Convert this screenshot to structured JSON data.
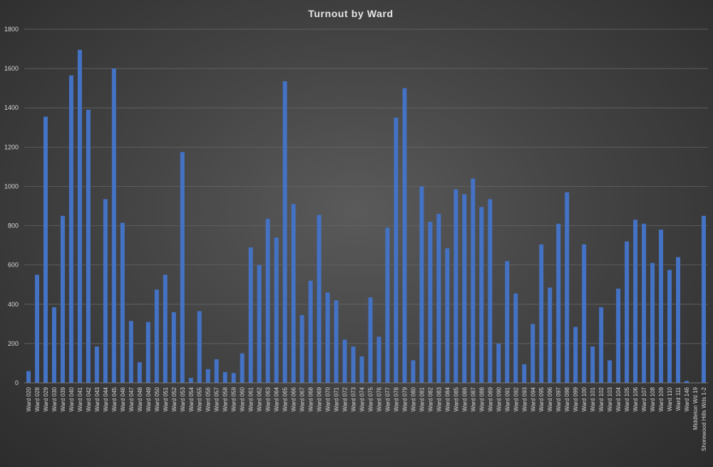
{
  "chart_data": {
    "type": "bar",
    "title": "Turnout by Ward",
    "xlabel": "",
    "ylabel": "",
    "ylim": [
      0,
      1800
    ],
    "yticks": [
      0,
      200,
      400,
      600,
      800,
      1000,
      1200,
      1400,
      1600,
      1800
    ],
    "grid": true,
    "legend": "none",
    "bar_color": "#4472C4",
    "categories": [
      "Ward 020",
      "Ward 028",
      "Ward 029",
      "Ward 030",
      "Ward 039",
      "Ward 040",
      "Ward 041",
      "Ward 042",
      "Ward 043",
      "Ward 044",
      "Ward 045",
      "Ward 046",
      "Ward 047",
      "Ward 048",
      "Ward 049",
      "Ward 050",
      "Ward 051",
      "Ward 052",
      "Ward 053",
      "Ward 054",
      "Ward 055",
      "Ward 056",
      "Ward 057",
      "Ward 058",
      "Ward 059",
      "Ward 060",
      "Ward 061",
      "Ward 062",
      "Ward 063",
      "Ward 064",
      "Ward 065",
      "Ward 066",
      "Ward 067",
      "Ward 068",
      "Ward 069",
      "Ward 070",
      "Ward 071",
      "Ward 072",
      "Ward 073",
      "Ward 074",
      "Ward 075",
      "Ward 076",
      "Ward 077",
      "Ward 078",
      "Ward 079",
      "Ward 080",
      "Ward 081",
      "Ward 082",
      "Ward 083",
      "Ward 084",
      "Ward 085",
      "Ward 086",
      "Ward 087",
      "Ward 088",
      "Ward 089",
      "Ward 090",
      "Ward 091",
      "Ward 092",
      "Ward 093",
      "Ward 094",
      "Ward 095",
      "Ward 096",
      "Ward 097",
      "Ward 098",
      "Ward 099",
      "Ward 100",
      "Ward 101",
      "Ward 102",
      "Ward 103",
      "Ward 104",
      "Ward 105",
      "Ward 106",
      "Ward 107",
      "Ward 108",
      "Ward 109",
      "Ward 110",
      "Ward 111",
      "Ward 146",
      "Middleton Wd 19",
      "Shorewood Hills Wds 1-2"
    ],
    "values": [
      60,
      550,
      1355,
      385,
      850,
      1565,
      1695,
      1390,
      185,
      935,
      1600,
      815,
      315,
      105,
      310,
      475,
      550,
      360,
      1175,
      25,
      365,
      70,
      120,
      55,
      50,
      150,
      690,
      600,
      835,
      740,
      1535,
      910,
      345,
      520,
      855,
      460,
      420,
      220,
      185,
      135,
      435,
      235,
      790,
      1350,
      1500,
      115,
      1000,
      820,
      860,
      685,
      985,
      960,
      1040,
      895,
      935,
      200,
      620,
      455,
      95,
      300,
      705,
      485,
      810,
      970,
      285,
      705,
      185,
      385,
      115,
      480,
      720,
      830,
      810,
      610,
      780,
      575,
      640,
      10,
      0,
      850
    ]
  }
}
